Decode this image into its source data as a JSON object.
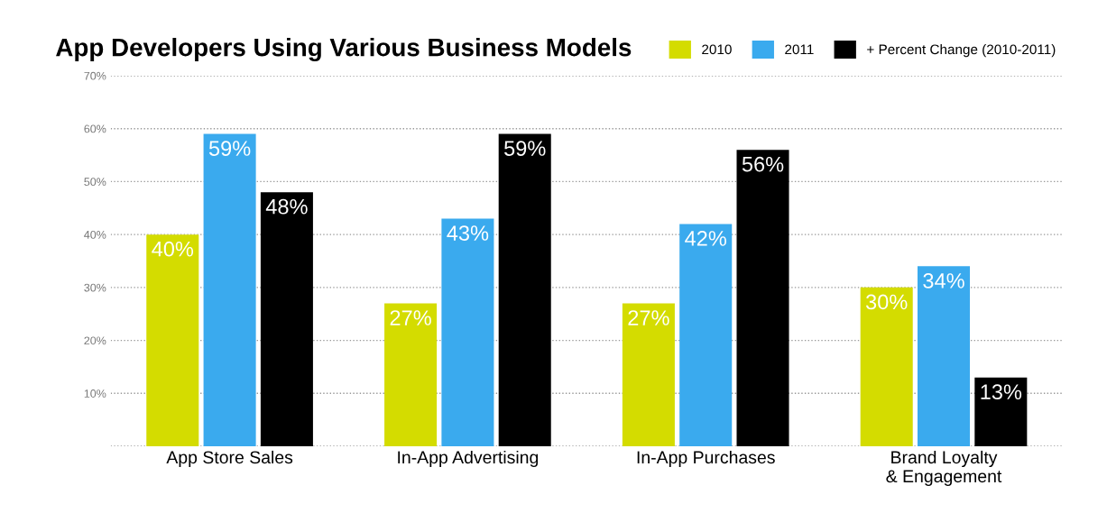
{
  "chart_data": {
    "type": "bar",
    "title": "App Developers Using Various Business Models",
    "categories": [
      "App Store Sales",
      "In-App Advertising",
      "In-App Purchases",
      "Brand Loyalty\n& Engagement"
    ],
    "series": [
      {
        "name": "2010",
        "color": "#d4dc00",
        "values": [
          40,
          27,
          27,
          30
        ]
      },
      {
        "name": "2011",
        "color": "#3aaaee",
        "values": [
          59,
          43,
          42,
          34
        ]
      },
      {
        "name": "+ Percent Change (2010-2011)",
        "color": "#000000",
        "values": [
          48,
          59,
          56,
          13
        ]
      }
    ],
    "ylim": [
      0,
      70
    ],
    "yticks": [
      {
        "value": 0,
        "label": null
      },
      {
        "value": 10,
        "label": "10%"
      },
      {
        "value": 20,
        "label": "20%"
      },
      {
        "value": 30,
        "label": "30%"
      },
      {
        "value": 40,
        "label": "40%"
      },
      {
        "value": 50,
        "label": "50%"
      },
      {
        "value": 60,
        "label": "60%"
      },
      {
        "value": 70,
        "label": "70%"
      }
    ],
    "value_labels": [
      [
        "40%",
        "27%",
        "27%",
        "30%"
      ],
      [
        "59%",
        "43%",
        "42%",
        "34%"
      ],
      [
        "48%",
        "59%",
        "56%",
        "13%"
      ]
    ],
    "grid": "y",
    "legend": "top right"
  }
}
